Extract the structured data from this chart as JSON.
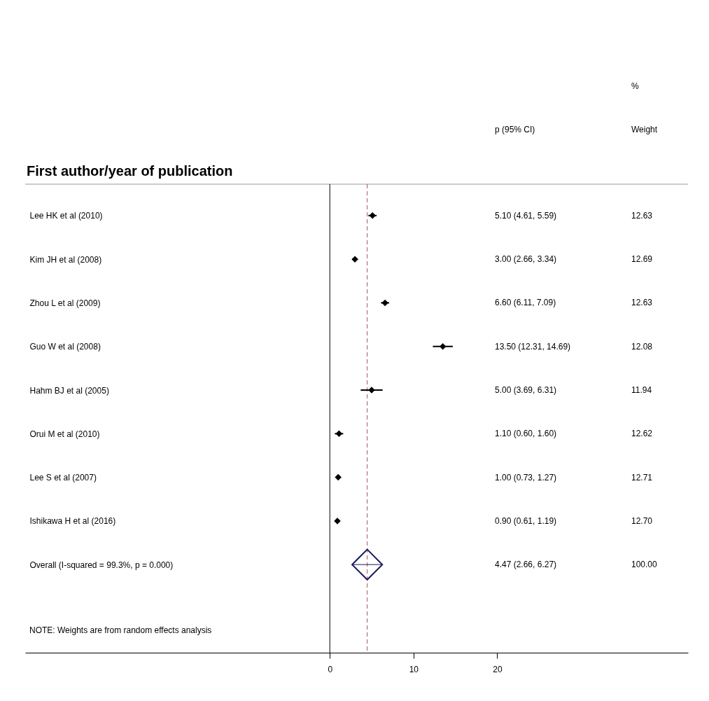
{
  "chart_data": {
    "type": "scatter",
    "orientation": "horizontal",
    "ylabel": "First author/year of publication",
    "categories": [
      "Lee HK et al (2010)",
      "Kim JH et al (2008)",
      "Zhou L et al (2009)",
      "Guo W et al (2008)",
      "Hahm BJ et al (2005)",
      "Orui M et al (2010)",
      "Lee S et al (2007)",
      "Ishikawa H et al (2016)",
      "Overall  (I-squared = 99.3%, p = 0.000)"
    ],
    "series": [
      {
        "type": "scatter",
        "color": "#000000",
        "values": [
          5.1,
          3.0,
          6.6,
          13.5,
          5.0,
          1.1,
          1.0,
          0.9,
          null
        ],
        "errors": [
          [
            4.61,
            5.59
          ],
          [
            2.66,
            3.34
          ],
          [
            6.11,
            7.09
          ],
          [
            12.31,
            14.69
          ],
          [
            3.69,
            6.31
          ],
          [
            0.6,
            1.6
          ],
          [
            0.73,
            1.27
          ],
          [
            0.61,
            1.19
          ],
          null
        ]
      },
      {
        "type": "scatter",
        "color": "#1a1a5e",
        "values": [
          null,
          null,
          null,
          null,
          null,
          null,
          null,
          null,
          4.47
        ],
        "errors": [
          null,
          null,
          null,
          null,
          null,
          null,
          null,
          null,
          [
            2.66,
            6.27
          ]
        ]
      }
    ],
    "marker": "diamond",
    "xlim": [
      -36.4,
      42.8
    ],
    "xticks": [
      0,
      10,
      20
    ],
    "ref_lines": [
      {
        "axis": "x",
        "value": 0,
        "color": "#000000",
        "line_style": "solid"
      },
      {
        "axis": "x",
        "value": 4.47,
        "color": "#a0525a",
        "line_style": "dashed"
      }
    ],
    "annotations": [
      "p (95% CI)",
      "%",
      "Weight",
      "NOTE: Weights are from random effects analysis",
      "5.10 (4.61, 5.59)",
      "12.63",
      "3.00 (2.66, 3.34)",
      "12.69",
      "6.60 (6.11, 7.09)",
      "12.63",
      "13.50 (12.31, 14.69)",
      "12.08",
      "5.00 (3.69, 6.31)",
      "11.94",
      "1.10 (0.60, 1.60)",
      "12.62",
      "1.00 (0.73, 1.27)",
      "12.71",
      "0.90 (0.61, 1.19)",
      "12.70",
      "4.47 (2.66, 6.27)",
      "100.00"
    ],
    "grid": false
  }
}
